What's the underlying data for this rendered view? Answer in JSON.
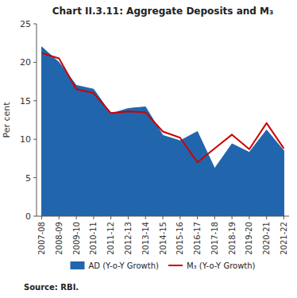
{
  "chart_data": {
    "type": "line",
    "title": "Chart II.3.11: Aggregate Deposits and M₃",
    "y_label": "Per cent",
    "source": "Source: RBI.",
    "categories": [
      "2007-08",
      "2008-09",
      "2009-10",
      "2010-11",
      "2011-12",
      "2012-13",
      "2013-14",
      "2014-15",
      "2015-16",
      "2016-17",
      "2017-18",
      "2018-19",
      "2019-20",
      "2020-21",
      "2021-22"
    ],
    "series": [
      {
        "name": "AD (Y-o-Y Growth)",
        "type": "area",
        "color": "#2166ac",
        "values": [
          22.0,
          20.0,
          17.0,
          16.5,
          13.3,
          14.0,
          14.2,
          10.5,
          9.8,
          11.0,
          6.2,
          9.4,
          8.3,
          11.2,
          8.5
        ]
      },
      {
        "name": "M₃ (Y-o-Y Growth)",
        "type": "line",
        "color": "#cc0000",
        "values": [
          21.2,
          20.5,
          16.5,
          16.0,
          13.4,
          13.6,
          13.5,
          11.0,
          10.2,
          7.0,
          8.8,
          10.6,
          8.7,
          12.1,
          8.8
        ]
      }
    ],
    "ylim": [
      0,
      25
    ],
    "yticks": [
      0,
      5,
      10,
      15,
      20,
      25
    ],
    "grid": false,
    "legend": "bottom"
  }
}
